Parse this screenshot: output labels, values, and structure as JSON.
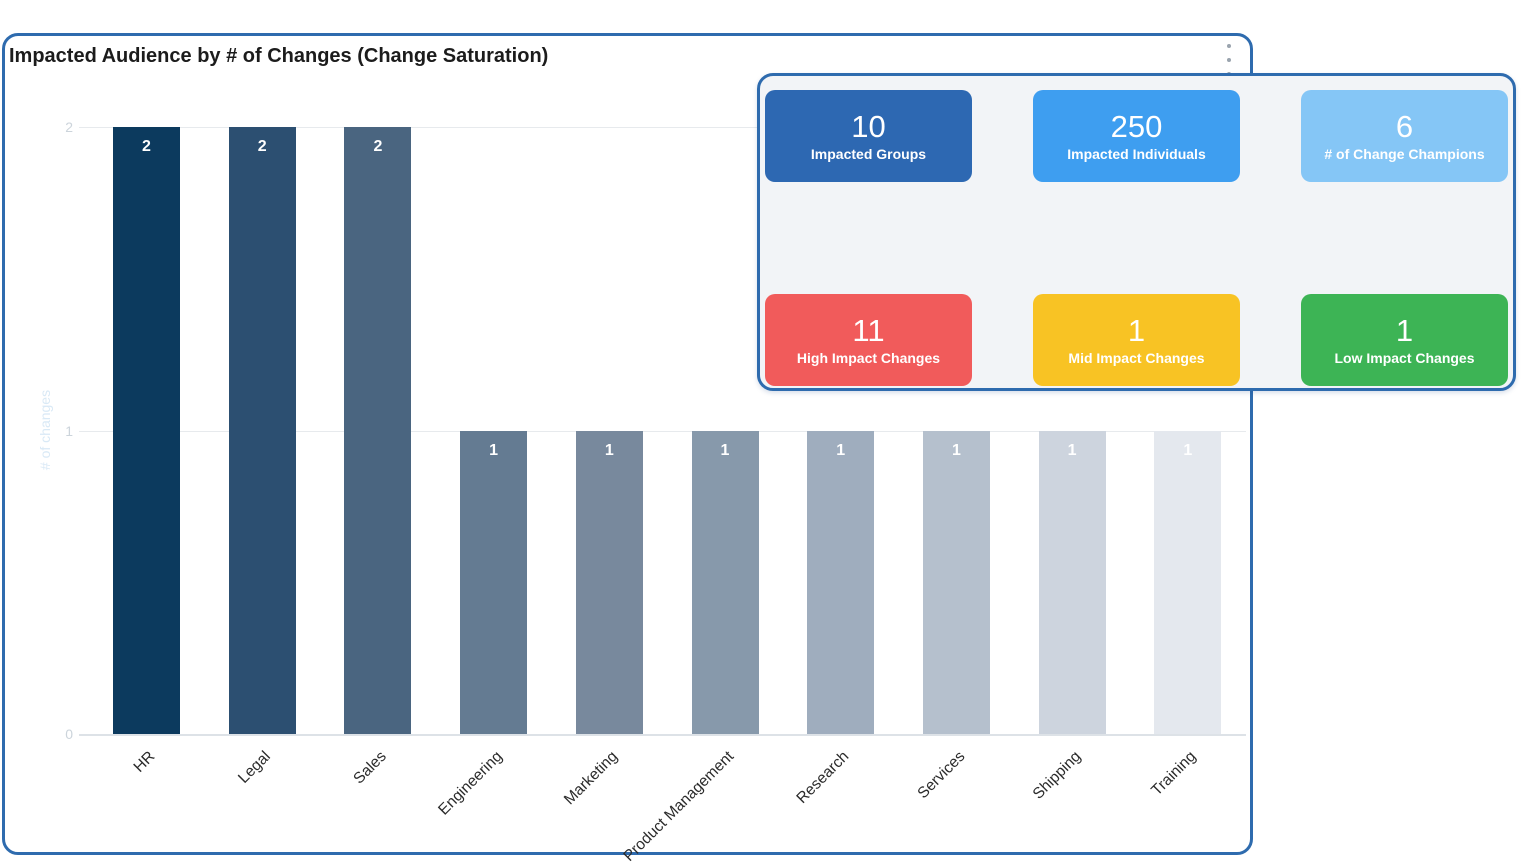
{
  "page": {
    "background": "#ffffff",
    "accent_border": "#2e6bae"
  },
  "icons": {
    "more_options": "kebab-menu-icon"
  },
  "chart_data": {
    "type": "bar",
    "title": "Impacted Audience by # of Changes (Change Saturation)",
    "categories": [
      "HR",
      "Legal",
      "Sales",
      "Engineering",
      "Marketing",
      "Product Management",
      "Research",
      "Services",
      "Shipping",
      "Training"
    ],
    "values": [
      2,
      2,
      2,
      1,
      1,
      1,
      1,
      1,
      1,
      1
    ],
    "bar_colors": [
      "#0c3a5e",
      "#2c4f71",
      "#4a6580",
      "#647b92",
      "#78899d",
      "#8799ab",
      "#9fadbe",
      "#b5c0cd",
      "#cdd4de",
      "#e4e8ee"
    ],
    "xlabel": "",
    "ylabel": "# of changes",
    "yticks": [
      0,
      1,
      2
    ],
    "ylim": [
      0,
      2
    ],
    "grid": true,
    "legend": false,
    "value_labels_position": "inside-top",
    "value_label_color": "#ffffff",
    "tick_label_color": "#ccd4db",
    "xlabel_rotation_deg": -45
  },
  "stats_panel": {
    "cards": [
      {
        "value": "10",
        "label": "Impacted Groups",
        "color": "#2d68b2"
      },
      {
        "value": "250",
        "label": "Impacted Individuals",
        "color": "#3e9ef0"
      },
      {
        "value": "6",
        "label": "# of Change Champions",
        "color": "#85c6f6"
      },
      {
        "value": "11",
        "label": "High Impact Changes",
        "color": "#f15b5b"
      },
      {
        "value": "1",
        "label": "Mid Impact Changes",
        "color": "#f8c324"
      },
      {
        "value": "1",
        "label": "Low Impact Changes",
        "color": "#3db455"
      }
    ]
  }
}
